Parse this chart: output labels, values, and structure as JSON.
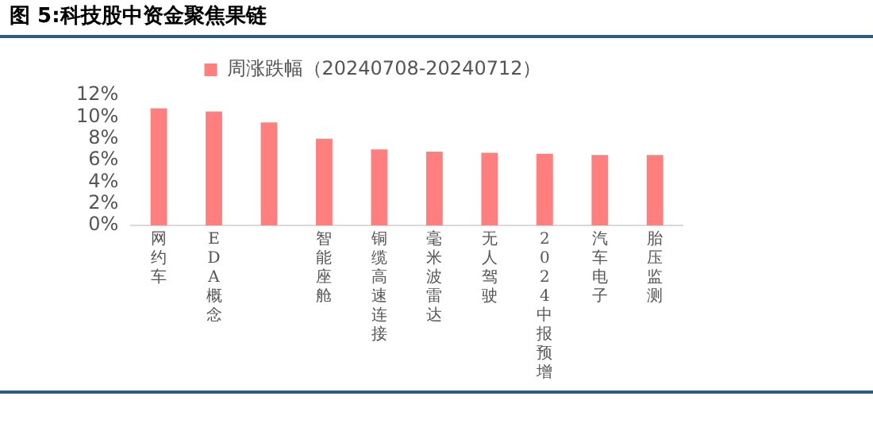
{
  "chart_data": {
    "type": "bar",
    "title": "图 5:科技股中资金聚焦果链",
    "categories": [
      "网约车",
      "EDA概念",
      null,
      "智能座舱",
      "铜缆高速连接",
      "毫米波雷达",
      "无人驾驶",
      "2024中报预增",
      "汽车电子",
      "胎压监测"
    ],
    "series": [
      {
        "name": "周涨跌幅（20240708-20240712）",
        "color": "#ff7f7f",
        "values": [
          10.8,
          10.5,
          9.5,
          8.0,
          7.0,
          6.8,
          6.7,
          6.6,
          6.5,
          6.5
        ]
      }
    ],
    "ylim": [
      0,
      12
    ],
    "yticks": [
      {
        "value": 0,
        "label": "0%"
      },
      {
        "value": 2,
        "label": "2%"
      },
      {
        "value": 4,
        "label": "4%"
      },
      {
        "value": 6,
        "label": "6%"
      },
      {
        "value": 8,
        "label": "8%"
      },
      {
        "value": 10,
        "label": "10%"
      },
      {
        "value": 12,
        "label": "12%"
      }
    ],
    "grid": false,
    "legend": "top"
  }
}
